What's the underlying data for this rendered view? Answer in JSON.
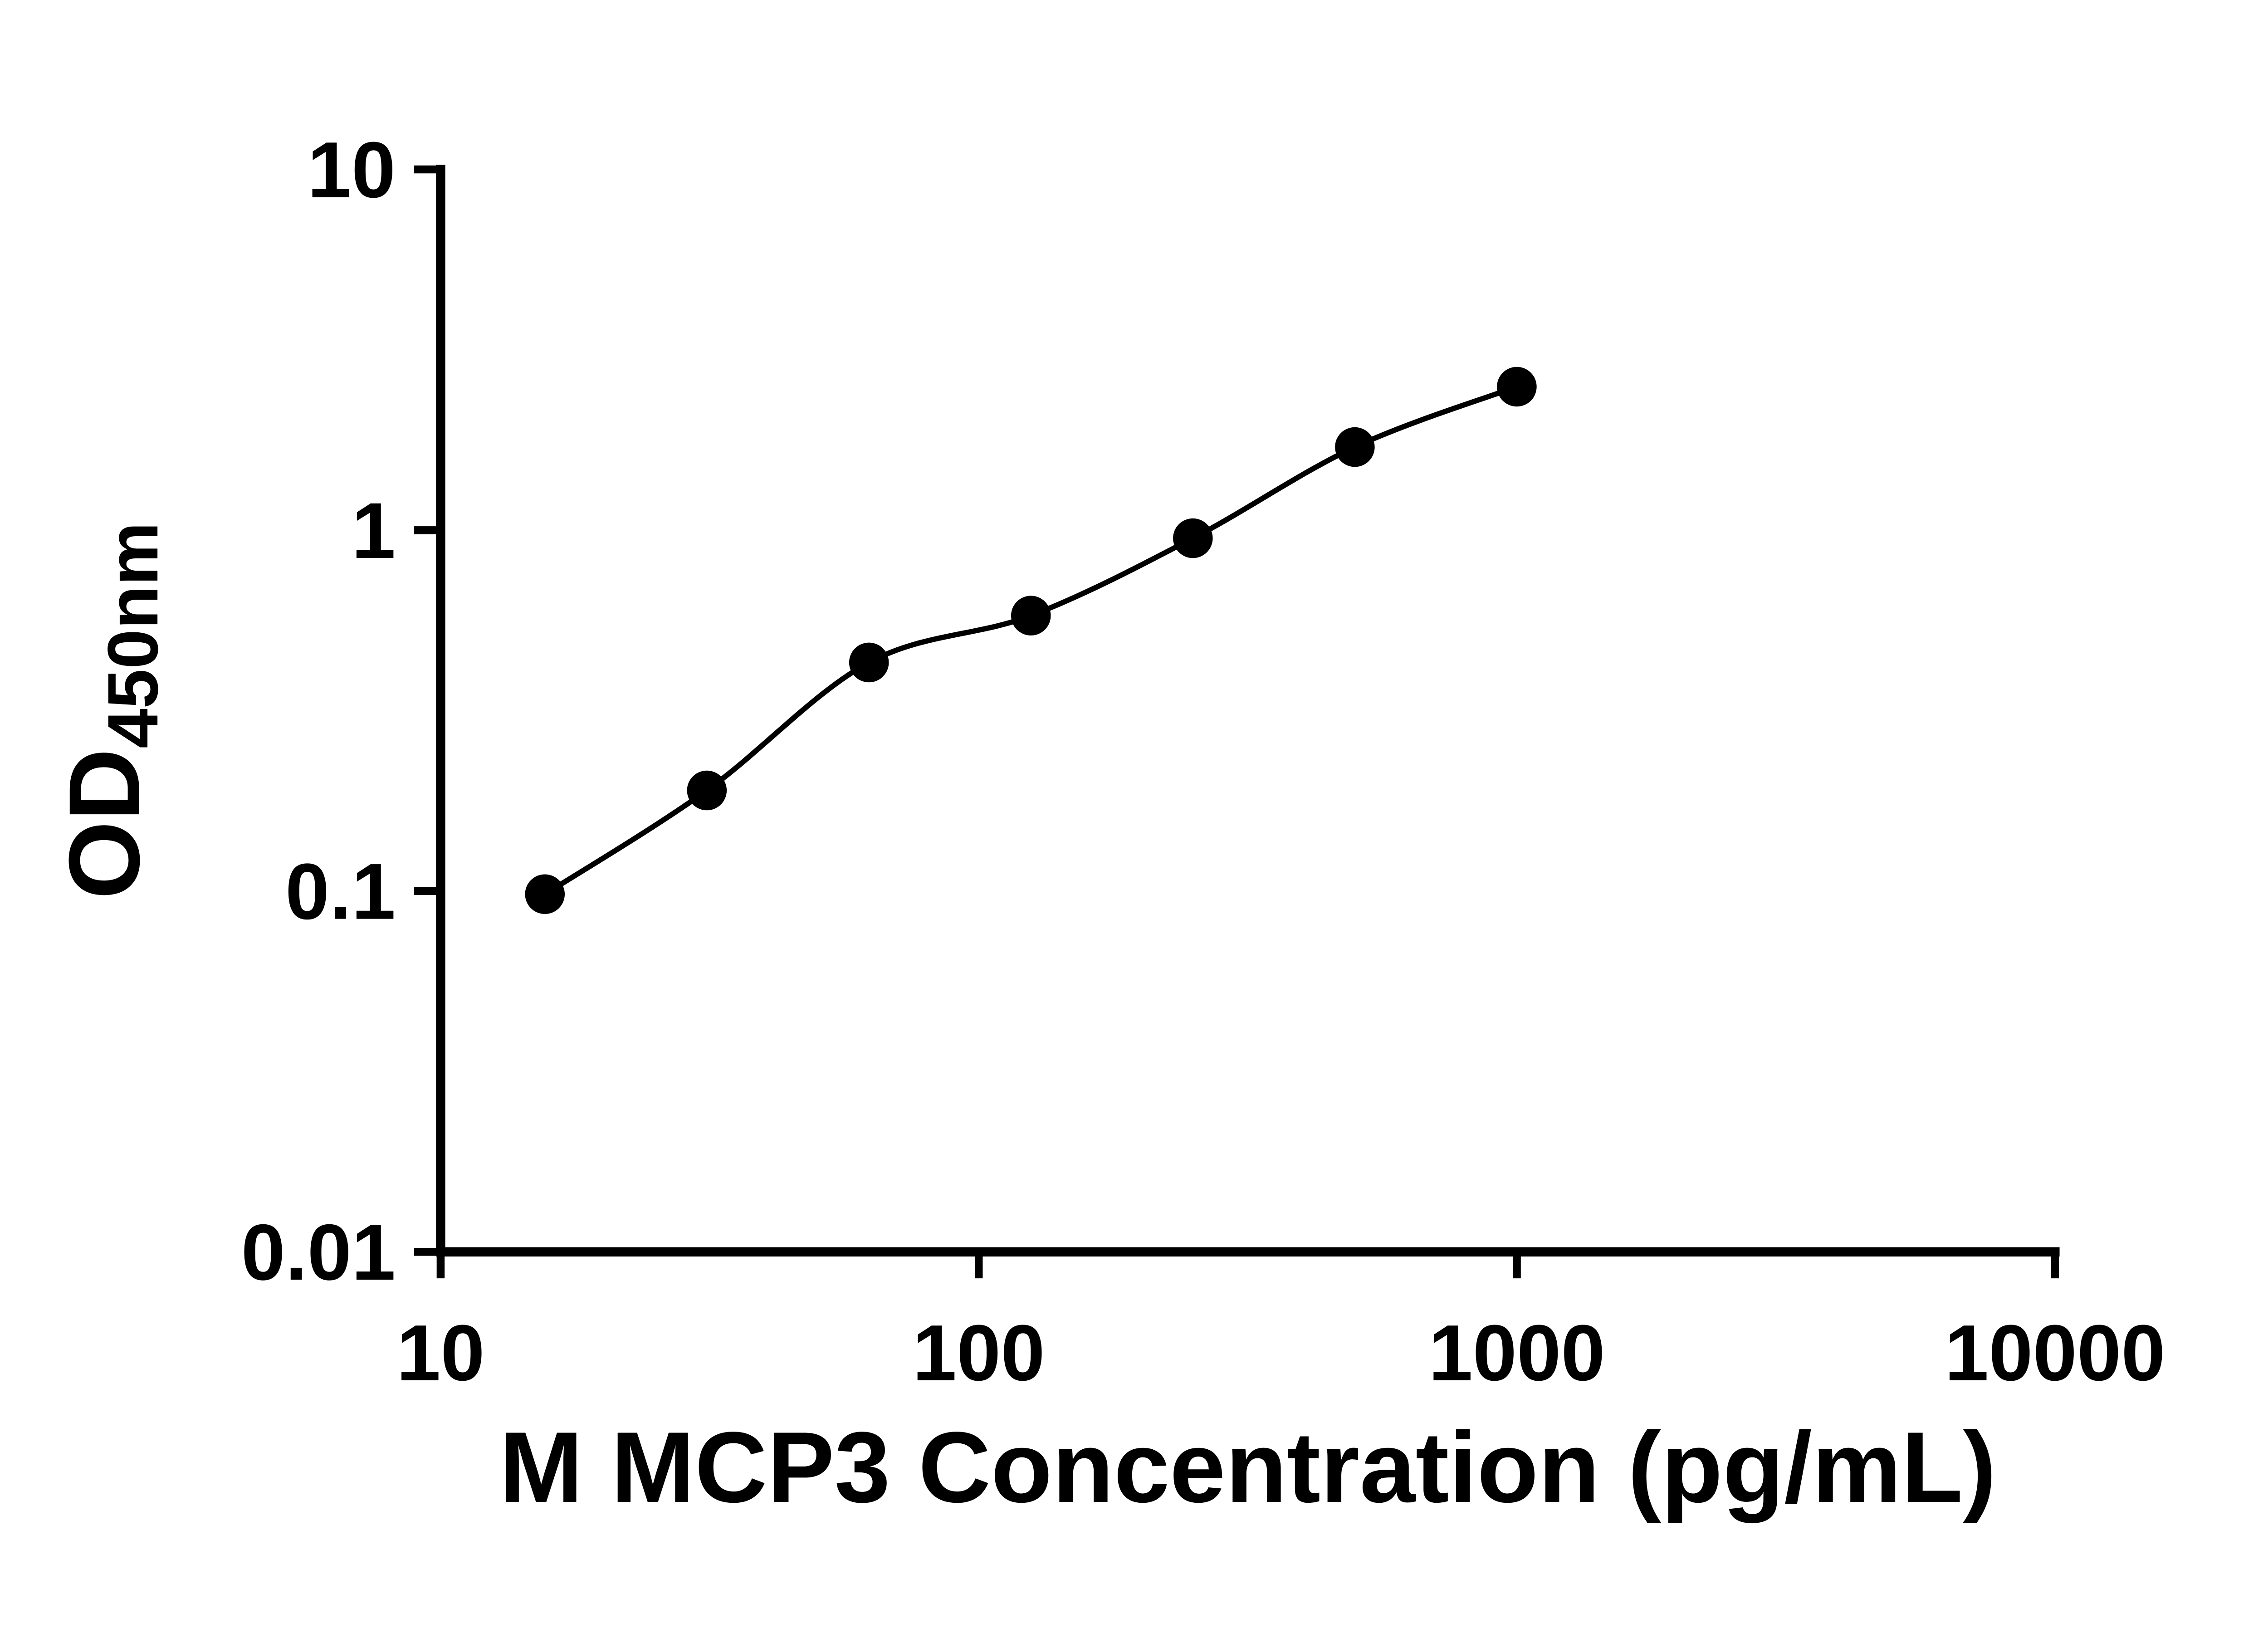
{
  "chart_data": {
    "type": "scatter",
    "xlabel": "M MCP3 Concentration (pg/mL)",
    "ylabel_main": "OD",
    "ylabel_sub": "450nm",
    "x_scale": "log",
    "y_scale": "log",
    "xlim": [
      10,
      10000
    ],
    "ylim": [
      0.01,
      10
    ],
    "x_ticks": [
      10,
      100,
      1000,
      10000
    ],
    "y_ticks": [
      0.01,
      0.1,
      1,
      10
    ],
    "grid": false,
    "legend": "none",
    "series": [
      {
        "marker": "filled-circle",
        "line": "smooth-trend",
        "color": "#000000",
        "x": [
          15.625,
          31.25,
          62.5,
          125,
          250,
          500,
          1000
        ],
        "y": [
          0.098,
          0.19,
          0.43,
          0.58,
          0.95,
          1.7,
          2.5
        ]
      }
    ]
  },
  "colors": {
    "axis": "#000000",
    "marker": "#000000",
    "curve": "#000000",
    "background": "#ffffff"
  }
}
